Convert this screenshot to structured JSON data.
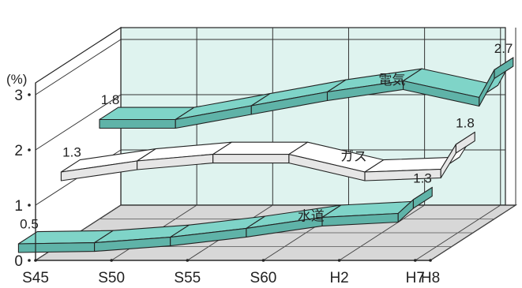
{
  "chart_data": {
    "type": "3d-ribbon-line",
    "unit_label": "(%)",
    "x_ticks": [
      "S45",
      "S50",
      "S55",
      "S60",
      "H2",
      "H7",
      "H8"
    ],
    "y_ticks": [
      "0",
      "1",
      "2",
      "3"
    ],
    "ylim": [
      0,
      3
    ],
    "grid": true,
    "series": [
      {
        "name": "電気",
        "x": [
          "S45",
          "S50",
          "S55",
          "S60",
          "H2",
          "H7",
          "H8"
        ],
        "values": [
          1.8,
          1.8,
          2.05,
          2.3,
          2.5,
          2.2,
          2.7
        ],
        "start_label": "1.8",
        "end_label": "2.7",
        "color": "#7fd4c8"
      },
      {
        "name": "ガス",
        "x": [
          "S45",
          "S50",
          "S55",
          "S60",
          "H2",
          "H7",
          "H8"
        ],
        "values": [
          1.3,
          1.5,
          1.62,
          1.62,
          1.3,
          1.35,
          1.8
        ],
        "start_label": "1.3",
        "end_label": "1.8",
        "color": "#ffffff"
      },
      {
        "name": "水道",
        "x": [
          "S45",
          "S50",
          "S55",
          "S60",
          "H2",
          "H7",
          "H8"
        ],
        "values": [
          0.5,
          0.52,
          0.62,
          0.78,
          0.98,
          1.05,
          1.3
        ],
        "start_label": "0.5",
        "end_label": "1.3",
        "color": "#7fd4c8"
      }
    ]
  }
}
